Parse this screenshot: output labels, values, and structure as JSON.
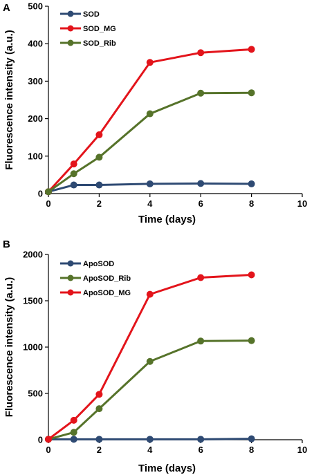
{
  "chart_data": [
    {
      "panel": "A",
      "type": "line",
      "xlabel": "Time (days)",
      "ylabel": "Fluorescence intensity (a.u.)",
      "xlim": [
        0,
        10
      ],
      "ylim": [
        0,
        500
      ],
      "xticks": [
        0,
        2,
        4,
        6,
        8,
        10
      ],
      "yticks": [
        0,
        100,
        200,
        300,
        400,
        500
      ],
      "x": [
        0,
        1,
        2,
        4,
        6,
        8
      ],
      "legend_position": "top-left",
      "series": [
        {
          "name": "SOD",
          "color": "#2e4a73",
          "values": [
            5,
            23,
            23,
            26,
            27,
            26
          ]
        },
        {
          "name": "SOD_MG",
          "color": "#e3141b",
          "values": [
            5,
            79,
            157,
            350,
            376,
            385
          ]
        },
        {
          "name": "SOD_Rib",
          "color": "#56732a",
          "values": [
            5,
            53,
            97,
            213,
            268,
            269
          ]
        }
      ]
    },
    {
      "panel": "B",
      "type": "line",
      "xlabel": "Time (days)",
      "ylabel": "Fluorescence intensity (a.u.)",
      "xlim": [
        0,
        10
      ],
      "ylim": [
        0,
        2000
      ],
      "xticks": [
        0,
        2,
        4,
        6,
        8,
        10
      ],
      "yticks": [
        0,
        500,
        1000,
        1500,
        2000
      ],
      "x": [
        0,
        1,
        2,
        4,
        6,
        8
      ],
      "legend_position": "top-left",
      "series": [
        {
          "name": "ApoSOD",
          "color": "#2e4a73",
          "values": [
            5,
            5,
            5,
            5,
            5,
            10
          ]
        },
        {
          "name": "ApoSOD_Rib",
          "color": "#56732a",
          "values": [
            5,
            80,
            335,
            845,
            1065,
            1070
          ]
        },
        {
          "name": "ApoSOD_MG",
          "color": "#e3141b",
          "values": [
            5,
            210,
            490,
            1570,
            1750,
            1780
          ]
        }
      ]
    }
  ]
}
